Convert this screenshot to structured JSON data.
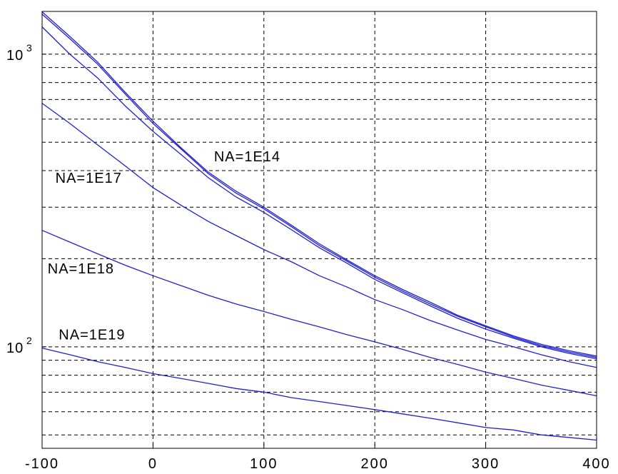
{
  "chart_data": {
    "type": "line",
    "title": "",
    "xlabel": "",
    "ylabel": "",
    "xlim": [
      -100,
      400
    ],
    "ylim": [
      45,
      1400
    ],
    "yscale": "log",
    "grid": true,
    "grid_style": "dashed",
    "x_ticks": [
      -100,
      0,
      100,
      200,
      300,
      400
    ],
    "x_tick_labels": [
      "-100",
      "0",
      "100",
      "200",
      "300",
      "400"
    ],
    "y_ticks": [
      {
        "value": 100,
        "base": "10",
        "exp": "2"
      },
      {
        "value": 1000,
        "base": "10",
        "exp": "3"
      }
    ],
    "y_minor_grid": [
      50,
      60,
      70,
      80,
      90,
      200,
      300,
      400,
      500,
      600,
      700,
      800,
      900
    ],
    "line_color": "#2020d0",
    "annotations": [
      {
        "text": "NA=1E14",
        "x": 55,
        "y": 430
      },
      {
        "text": "NA=1E17",
        "x": -88,
        "y": 364
      },
      {
        "text": "NA=1E18",
        "x": -95,
        "y": 178
      },
      {
        "text": "NA=1E19",
        "x": -85,
        "y": 106
      }
    ],
    "series": [
      {
        "x": [
          -100,
          -75,
          -50,
          -25,
          0,
          25,
          50,
          75,
          100,
          125,
          150,
          175,
          200,
          225,
          250,
          275,
          300,
          325,
          350,
          375,
          400
        ],
        "values": [
          1395,
          1150,
          940,
          740,
          590,
          480,
          395,
          340,
          300,
          260,
          225,
          198,
          175,
          157,
          142,
          128,
          118,
          109,
          102,
          97,
          93
        ]
      },
      {
        "x": [
          -100,
          -75,
          -50,
          -25,
          0,
          25,
          50,
          75,
          100,
          125,
          150,
          175,
          200,
          225,
          250,
          275,
          300,
          325,
          350,
          375,
          400
        ],
        "values": [
          1370,
          1130,
          925,
          730,
          580,
          475,
          390,
          335,
          296,
          257,
          222,
          196,
          173,
          155,
          140,
          127,
          117,
          108,
          101,
          96,
          92
        ]
      },
      {
        "x": [
          -100,
          -75,
          -50,
          -25,
          0,
          25,
          50,
          75,
          100,
          125,
          150,
          175,
          200,
          225,
          250,
          275,
          300,
          325,
          350,
          375,
          400
        ],
        "values": [
          1240,
          1000,
          830,
          665,
          545,
          455,
          378,
          325,
          288,
          251,
          218,
          193,
          170,
          153,
          138,
          125,
          115,
          107,
          100,
          95,
          91
        ]
      },
      {
        "x": [
          -100,
          -75,
          -50,
          -25,
          0,
          25,
          50,
          75,
          100,
          125,
          150,
          175,
          200,
          225,
          250,
          275,
          300,
          325,
          350,
          375,
          400
        ],
        "values": [
          680,
          580,
          490,
          415,
          350,
          305,
          268,
          240,
          215,
          195,
          175,
          160,
          145,
          134,
          123,
          114,
          106,
          100,
          94,
          89,
          85
        ]
      },
      {
        "x": [
          -100,
          -75,
          -50,
          -25,
          0,
          25,
          50,
          75,
          100,
          125,
          150,
          175,
          200,
          225,
          250,
          275,
          300,
          325,
          350,
          375,
          400
        ],
        "values": [
          250,
          228,
          208,
          190,
          175,
          162,
          150,
          140,
          132,
          124,
          117,
          110,
          104,
          98,
          92,
          87,
          82,
          78,
          74,
          71,
          68
        ]
      },
      {
        "x": [
          -100,
          -75,
          -50,
          -25,
          0,
          25,
          50,
          75,
          100,
          125,
          150,
          175,
          200,
          225,
          250,
          275,
          300,
          325,
          350,
          375,
          400
        ],
        "values": [
          99,
          94,
          89,
          85,
          81,
          78,
          75,
          72,
          70,
          67,
          65,
          63,
          61,
          59,
          57,
          55,
          53,
          52,
          50,
          49,
          48
        ]
      }
    ]
  }
}
